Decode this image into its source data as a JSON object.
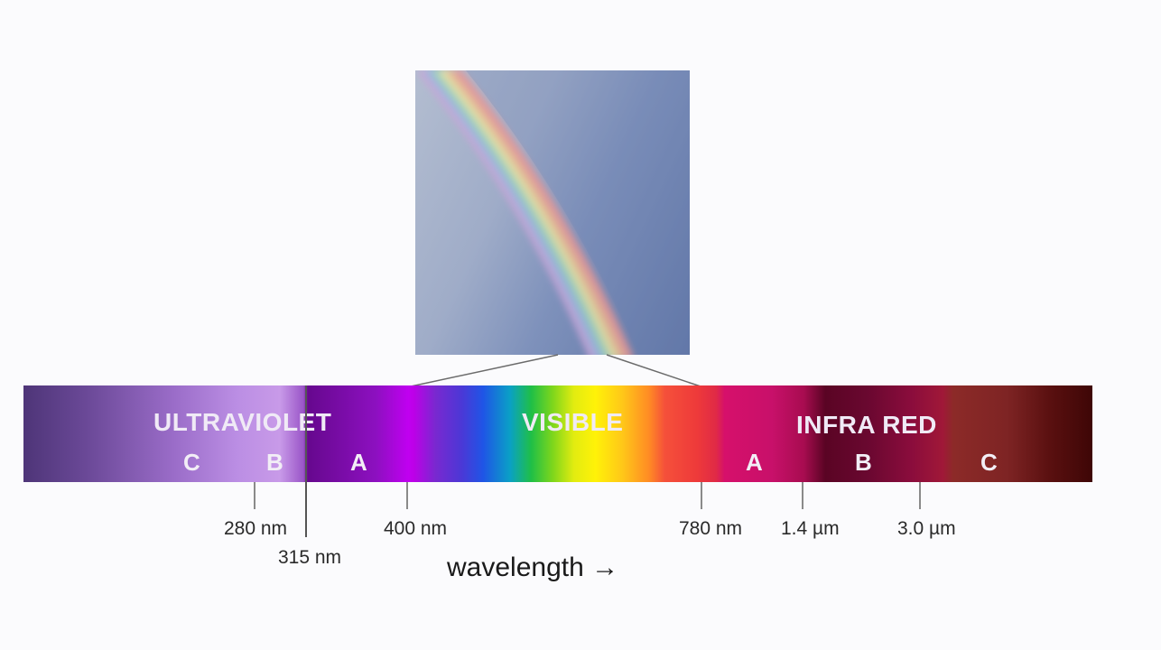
{
  "bands": {
    "ultraviolet": "ULTRAVIOLET",
    "visible": "VISIBLE",
    "infrared": "INFRA RED"
  },
  "uv_subbands": [
    "C",
    "B",
    "A"
  ],
  "ir_subbands": [
    "A",
    "B",
    "C"
  ],
  "ticks": [
    "280 nm",
    "315 nm",
    "400 nm",
    "780 nm",
    "1.4 µm",
    "3.0 µm"
  ],
  "axis": {
    "label": "wavelength →"
  },
  "colors": {
    "background": "#fbfbfd",
    "sky": "#7e91bb",
    "label_text": "#f0eaf6"
  }
}
